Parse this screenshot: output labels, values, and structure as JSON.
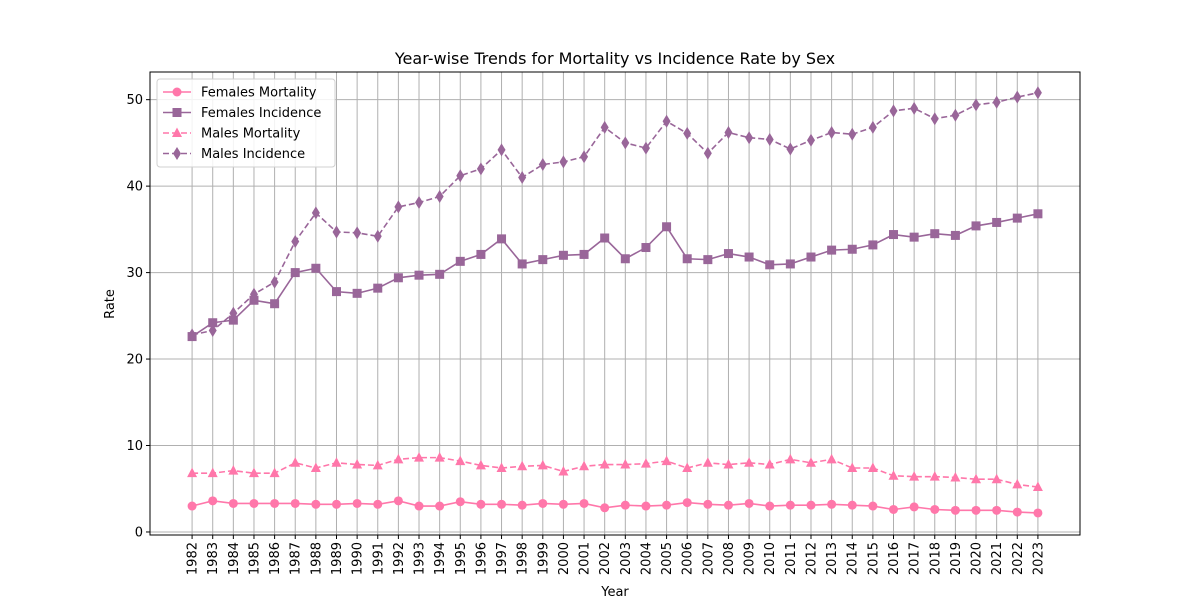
{
  "chart_data": {
    "type": "line",
    "title": "Year-wise Trends for Mortality vs Incidence Rate by Sex",
    "xlabel": "Year",
    "ylabel": "Rate",
    "x": [
      1982,
      1983,
      1984,
      1985,
      1986,
      1987,
      1988,
      1989,
      1990,
      1991,
      1992,
      1993,
      1994,
      1995,
      1996,
      1997,
      1998,
      1999,
      2000,
      2001,
      2002,
      2003,
      2004,
      2005,
      2006,
      2007,
      2008,
      2009,
      2010,
      2011,
      2012,
      2013,
      2014,
      2015,
      2016,
      2017,
      2018,
      2019,
      2020,
      2021,
      2022,
      2023
    ],
    "xlim": [
      1979.96,
      2025.04
    ],
    "ylim": [
      -0.35,
      53.2
    ],
    "yticks": [
      0,
      10,
      20,
      30,
      40,
      50
    ],
    "grid": true,
    "legend_position": "upper-left",
    "series": [
      {
        "name": "Females Mortality",
        "color": "#ff77aa",
        "linestyle": "solid",
        "marker": "circle",
        "values": [
          3.0,
          3.6,
          3.3,
          3.3,
          3.3,
          3.3,
          3.2,
          3.2,
          3.3,
          3.2,
          3.6,
          3.0,
          3.0,
          3.5,
          3.2,
          3.2,
          3.1,
          3.3,
          3.2,
          3.3,
          2.8,
          3.1,
          3.0,
          3.1,
          3.4,
          3.2,
          3.1,
          3.3,
          3.0,
          3.1,
          3.1,
          3.2,
          3.1,
          3.0,
          2.6,
          2.9,
          2.6,
          2.5,
          2.5,
          2.5,
          2.3,
          2.2
        ]
      },
      {
        "name": "Females Incidence",
        "color": "#996699",
        "linestyle": "solid",
        "marker": "square",
        "values": [
          22.6,
          24.2,
          24.5,
          26.8,
          26.4,
          30.0,
          30.5,
          27.8,
          27.6,
          28.2,
          29.4,
          29.7,
          29.8,
          31.3,
          32.1,
          33.9,
          31.0,
          31.5,
          32.0,
          32.1,
          34.0,
          31.6,
          32.9,
          35.3,
          31.6,
          31.5,
          32.2,
          31.8,
          30.9,
          31.0,
          31.8,
          32.6,
          32.7,
          33.2,
          34.4,
          34.1,
          34.5,
          34.3,
          35.4,
          35.8,
          36.3,
          36.8
        ]
      },
      {
        "name": "Males Mortality",
        "color": "#ff77aa",
        "linestyle": "dashed",
        "marker": "triangle",
        "values": [
          6.8,
          6.8,
          7.1,
          6.8,
          6.8,
          8.0,
          7.4,
          8.0,
          7.8,
          7.7,
          8.4,
          8.6,
          8.6,
          8.2,
          7.7,
          7.4,
          7.6,
          7.7,
          7.0,
          7.6,
          7.8,
          7.8,
          7.9,
          8.2,
          7.4,
          8.0,
          7.8,
          8.0,
          7.8,
          8.4,
          8.0,
          8.4,
          7.4,
          7.4,
          6.5,
          6.4,
          6.4,
          6.3,
          6.1,
          6.1,
          5.5,
          5.2
        ]
      },
      {
        "name": "Males Incidence",
        "color": "#996699",
        "linestyle": "dashed",
        "marker": "diamond",
        "values": [
          22.8,
          23.3,
          25.3,
          27.5,
          28.9,
          33.6,
          36.9,
          34.7,
          34.6,
          34.2,
          37.6,
          38.1,
          38.8,
          41.2,
          42.0,
          44.2,
          41.0,
          42.5,
          42.8,
          43.4,
          46.8,
          45.0,
          44.4,
          47.5,
          46.1,
          43.8,
          46.2,
          45.6,
          45.4,
          44.3,
          45.3,
          46.2,
          46.0,
          46.8,
          48.7,
          49.0,
          47.8,
          48.2,
          49.4,
          49.7,
          50.3,
          50.8
        ]
      }
    ]
  }
}
